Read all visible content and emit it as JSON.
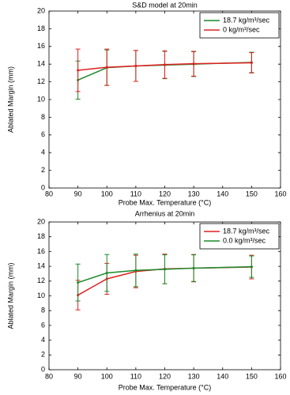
{
  "chart_data": [
    {
      "type": "line",
      "title": "S&D model at 20min",
      "x_label": "Probe Max. Temperature (°C)",
      "y_label": "Ablated Margin (mm)",
      "x": [
        90,
        100,
        110,
        120,
        130,
        150
      ],
      "series": [
        {
          "name": "18.7 kg/m³/sec",
          "color": "#1a8a2a",
          "values": [
            12.2,
            13.6,
            13.8,
            13.9,
            14.0,
            14.2
          ],
          "errors": [
            2.15,
            2.0,
            1.75,
            1.55,
            1.4,
            1.15
          ]
        },
        {
          "name": "0 kg/m³/sec",
          "color": "#e02020",
          "values": [
            13.3,
            13.65,
            13.8,
            13.95,
            14.05,
            14.15
          ],
          "errors": [
            2.4,
            2.05,
            1.75,
            1.55,
            1.4,
            1.15
          ]
        }
      ],
      "xlim": [
        80,
        160
      ],
      "xticks": [
        80,
        90,
        100,
        110,
        120,
        130,
        140,
        150,
        160
      ],
      "ylim": [
        0,
        20
      ],
      "yticks": [
        0,
        2,
        4,
        6,
        8,
        10,
        12,
        14,
        16,
        18,
        20
      ],
      "legend": "upper right"
    },
    {
      "type": "line",
      "title": "Arrhenius at 20min",
      "x_label": "Probe Max. Temperature (°C)",
      "y_label": "Ablated Margin (mm)",
      "x": [
        90,
        100,
        110,
        120,
        130,
        150
      ],
      "series": [
        {
          "name": "18.7 kg/m³/sec",
          "color": "#e02020",
          "values": [
            10.1,
            12.3,
            13.3,
            13.65,
            13.75,
            13.9
          ],
          "errors": [
            2.0,
            2.1,
            2.2,
            2.0,
            1.85,
            1.6
          ]
        },
        {
          "name": "0.0 kg/m³/sec",
          "color": "#1a8a2a",
          "values": [
            11.8,
            13.1,
            13.45,
            13.6,
            13.75,
            13.95
          ],
          "errors": [
            2.5,
            2.5,
            2.2,
            1.95,
            1.8,
            1.45
          ]
        }
      ],
      "xlim": [
        80,
        160
      ],
      "xticks": [
        80,
        90,
        100,
        110,
        120,
        130,
        140,
        150,
        160
      ],
      "ylim": [
        0,
        20
      ],
      "yticks": [
        0,
        2,
        4,
        6,
        8,
        10,
        12,
        14,
        16,
        18,
        20
      ],
      "legend": "upper right"
    }
  ]
}
